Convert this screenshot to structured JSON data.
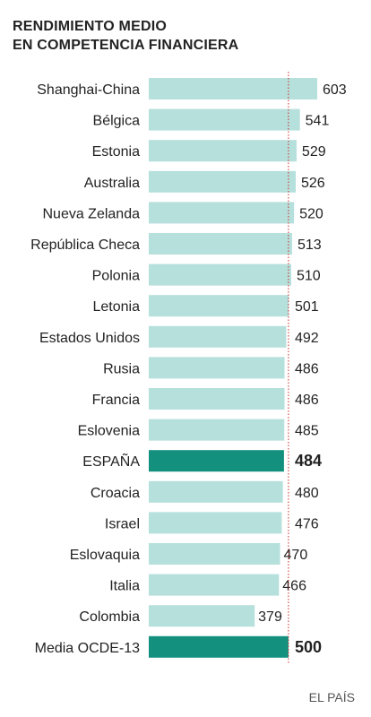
{
  "chart_data": {
    "type": "bar",
    "orientation": "horizontal",
    "title_lines": [
      "RENDIMIENTO MEDIO",
      "EN COMPETENCIA FINANCIERA"
    ],
    "categories": [
      "Shanghai-China",
      "Bélgica",
      "Estonia",
      "Australia",
      "Nueva Zelanda",
      "República Checa",
      "Polonia",
      "Letonia",
      "Estados Unidos",
      "Rusia",
      "Francia",
      "Eslovenia",
      "ESPAÑA",
      "Croacia",
      "Israel",
      "Eslovaquia",
      "Italia",
      "Colombia",
      "Media OCDE-13"
    ],
    "values": [
      603,
      541,
      529,
      526,
      520,
      513,
      510,
      501,
      492,
      486,
      486,
      485,
      484,
      480,
      476,
      470,
      466,
      379,
      500
    ],
    "highlighted": [
      "ESPAÑA",
      "Media OCDE-13"
    ],
    "reference_line": {
      "value": 500,
      "style": "dotted",
      "color": "#cc2b2b"
    },
    "xlim": [
      0,
      603
    ],
    "grid": false,
    "legend": "none",
    "colors": {
      "bar": "#b5e0dc",
      "highlight": "#13917e",
      "reference": "#cc2b2b"
    }
  },
  "source": "EL PAÍS"
}
